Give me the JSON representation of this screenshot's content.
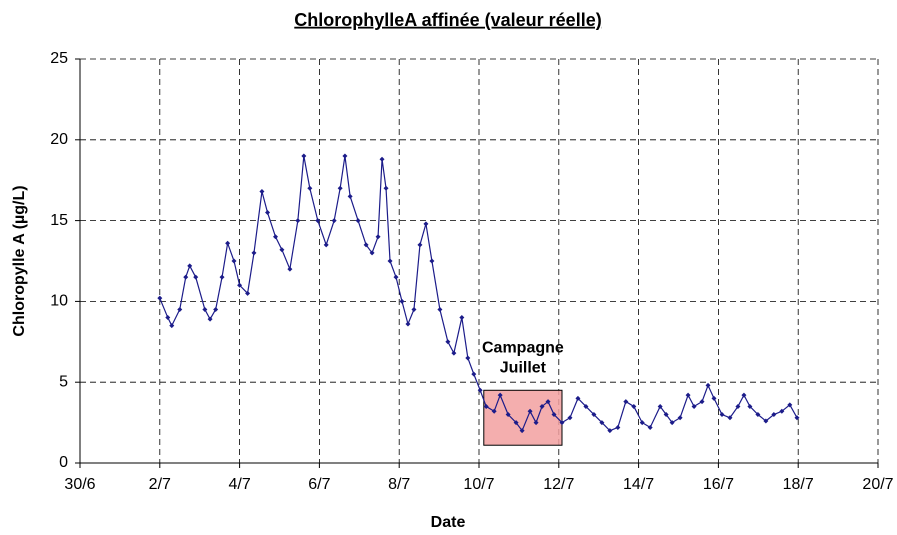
{
  "chart_data": {
    "type": "line",
    "title": "ChlorophylleA affinée (valeur réelle)",
    "x_label": "Date",
    "y_label": "Chloropylle A (µg/L)",
    "x": [
      2.0,
      2.2,
      2.3,
      2.5,
      2.65,
      2.75,
      2.9,
      3.13,
      3.26,
      3.4,
      3.56,
      3.7,
      3.86,
      4.0,
      4.2,
      4.36,
      4.56,
      4.7,
      4.9,
      5.06,
      5.26,
      5.46,
      5.61,
      5.76,
      5.96,
      6.17,
      6.37,
      6.52,
      6.64,
      6.77,
      6.97,
      7.17,
      7.32,
      7.47,
      7.57,
      7.67,
      7.77,
      7.92,
      8.07,
      8.22,
      8.37,
      8.52,
      8.67,
      8.82,
      9.02,
      9.22,
      9.37,
      9.57,
      9.72,
      9.87,
      10.03,
      10.18,
      10.38,
      10.53,
      10.73,
      10.93,
      11.08,
      11.28,
      11.43,
      11.58,
      11.73,
      11.88,
      12.08,
      12.28,
      12.48,
      12.68,
      12.88,
      13.08,
      13.28,
      13.48,
      13.68,
      13.88,
      14.09,
      14.29,
      14.54,
      14.69,
      14.84,
      15.04,
      15.24,
      15.39,
      15.59,
      15.74,
      15.89,
      16.09,
      16.29,
      16.49,
      16.64,
      16.79,
      16.99,
      17.19,
      17.39,
      17.59,
      17.79,
      17.97
    ],
    "series": [
      {
        "color": "#1c1c8a",
        "values": [
          10.2,
          9.0,
          8.5,
          9.5,
          11.5,
          12.2,
          11.5,
          9.5,
          8.9,
          9.5,
          11.5,
          13.6,
          12.5,
          11.0,
          10.5,
          13.0,
          16.8,
          15.5,
          14.0,
          13.2,
          12.0,
          15.0,
          19.0,
          17.0,
          15.0,
          13.5,
          15.0,
          17.0,
          19.0,
          16.5,
          15.0,
          13.5,
          13.0,
          14.0,
          18.8,
          17.0,
          12.5,
          11.5,
          10.0,
          8.6,
          9.5,
          13.5,
          14.8,
          12.5,
          9.5,
          7.5,
          6.8,
          9.0,
          6.5,
          5.5,
          4.5,
          3.5,
          3.2,
          4.2,
          3.0,
          2.5,
          2.0,
          3.2,
          2.5,
          3.5,
          3.8,
          3.0,
          2.5,
          2.8,
          4.0,
          3.5,
          3.0,
          2.5,
          2.0,
          2.2,
          3.8,
          3.5,
          2.5,
          2.2,
          3.5,
          3.0,
          2.5,
          2.8,
          4.2,
          3.5,
          3.8,
          4.8,
          4.0,
          3.0,
          2.8,
          3.5,
          4.2,
          3.5,
          3.0,
          2.6,
          3.0,
          3.2,
          3.6,
          2.8
        ]
      }
    ],
    "xlim": [
      0,
      20
    ],
    "xticks": [
      {
        "value": 0,
        "label": "30/6"
      },
      {
        "value": 2,
        "label": "2/7"
      },
      {
        "value": 4,
        "label": "4/7"
      },
      {
        "value": 6,
        "label": "6/7"
      },
      {
        "value": 8,
        "label": "8/7"
      },
      {
        "value": 10,
        "label": "10/7"
      },
      {
        "value": 12,
        "label": "12/7"
      },
      {
        "value": 14,
        "label": "14/7"
      },
      {
        "value": 16,
        "label": "16/7"
      },
      {
        "value": 18,
        "label": "18/7"
      },
      {
        "value": 20,
        "label": "20/7"
      }
    ],
    "ylim": [
      0,
      25
    ],
    "yticks": [
      0,
      5,
      10,
      15,
      20,
      25
    ],
    "grid": true,
    "annotation": {
      "text": [
        "Campagne",
        "Juillet"
      ],
      "x": [
        10.12,
        12.08
      ],
      "y": [
        1.1,
        4.5
      ],
      "color": "#f2a0a0"
    }
  }
}
